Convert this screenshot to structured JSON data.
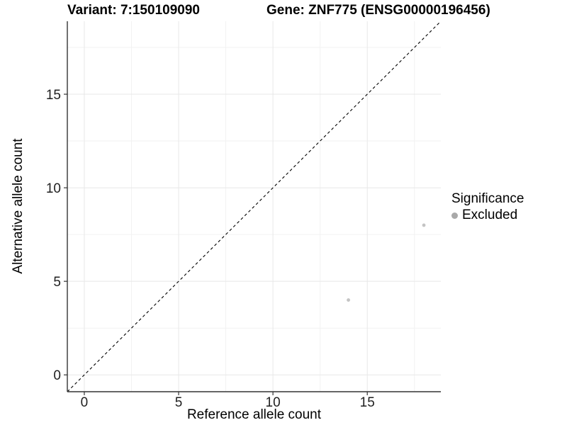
{
  "figure": {
    "title_variant": "Variant: 7:150109090",
    "title_gene": "Gene: ZNF775 (ENSG00000196456)"
  },
  "chart_data": {
    "type": "scatter",
    "title": "Variant: 7:150109090 — Gene: ZNF775 (ENSG00000196456)",
    "xlabel": "Reference allele count",
    "ylabel": "Alternative allele count",
    "xlim": [
      -0.9,
      18.9
    ],
    "ylim": [
      -0.9,
      18.9
    ],
    "xticks": [
      0,
      5,
      10,
      15
    ],
    "yticks": [
      0,
      5,
      10,
      15
    ],
    "minor_xticks": [
      2.5,
      7.5,
      12.5,
      17.5
    ],
    "minor_yticks": [
      2.5,
      7.5,
      12.5,
      17.5
    ],
    "grid": true,
    "series": [
      {
        "name": "Excluded",
        "color": "#c4c4c4",
        "points": [
          {
            "x": 14,
            "y": 4
          },
          {
            "x": 18,
            "y": 8
          }
        ]
      }
    ],
    "reference_line": {
      "type": "identity",
      "slope": 1,
      "intercept": 0,
      "style": "dashed",
      "color": "#000000"
    },
    "legend": {
      "title": "Significance",
      "position": "right",
      "entries": [
        {
          "label": "Excluded",
          "color": "#a9a9a9"
        }
      ]
    }
  },
  "colors": {
    "background": "#ffffff",
    "grid_major": "#e8e8e8",
    "grid_minor": "#f2f2f2",
    "axis_line": "#333333",
    "tick_mark": "#333333",
    "tick_label": "#1f1f1f"
  }
}
